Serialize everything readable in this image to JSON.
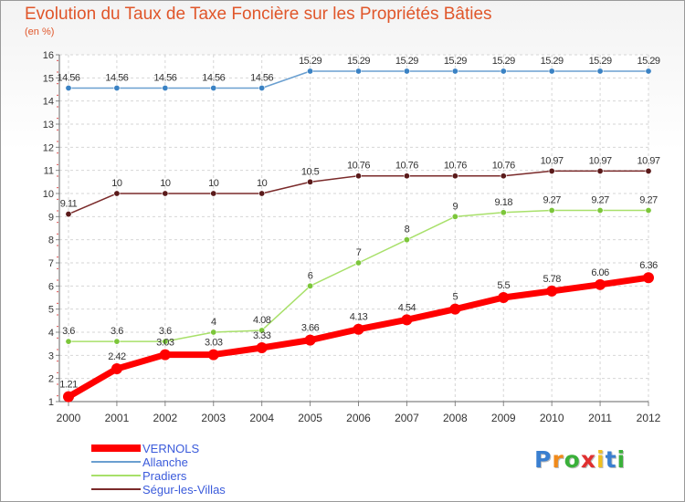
{
  "chart_data": {
    "type": "line",
    "title": "Evolution du Taux de Taxe Foncière sur les Propriétés Bâties",
    "subtitle": "(en %)",
    "x": [
      "2000",
      "2001",
      "2002",
      "2003",
      "2004",
      "2005",
      "2006",
      "2007",
      "2008",
      "2009",
      "2010",
      "2011",
      "2012"
    ],
    "ylim": [
      1,
      16
    ],
    "yticks": [
      1,
      2,
      3,
      4,
      5,
      6,
      7,
      8,
      9,
      10,
      11,
      12,
      13,
      14,
      15,
      16
    ],
    "grid": true,
    "legend_position": "bottom-left",
    "series": [
      {
        "name": "Allanche",
        "color": "#6a9fd0",
        "marker": "#3a82c4",
        "width": 1.5,
        "values": [
          14.56,
          14.56,
          14.56,
          14.56,
          14.56,
          15.29,
          15.29,
          15.29,
          15.29,
          15.29,
          15.29,
          15.29,
          15.29
        ],
        "labels": [
          "14.56",
          "14.56",
          "14.56",
          "14.56",
          "14.56",
          "15.29",
          "15.29",
          "15.29",
          "15.29",
          "15.29",
          "15.29",
          "15.29",
          "15.29"
        ]
      },
      {
        "name": "Ségur-les-Villas",
        "color": "#7a2a2a",
        "marker": "#5a1a1a",
        "width": 1.5,
        "values": [
          9.11,
          10,
          10,
          10,
          10,
          10.5,
          10.76,
          10.76,
          10.76,
          10.76,
          10.97,
          10.97,
          10.97
        ],
        "labels": [
          "9.11",
          "10",
          "10",
          "10",
          "10",
          "10.5",
          "10.76",
          "10.76",
          "10.76",
          "10.76",
          "10.97",
          "10.97",
          "10.97"
        ]
      },
      {
        "name": "Pradiers",
        "color": "#a8e06a",
        "marker": "#7cc63a",
        "width": 1.5,
        "values": [
          3.6,
          3.6,
          3.6,
          4,
          4.08,
          6,
          7,
          8,
          9,
          9.18,
          9.27,
          9.27,
          9.27
        ],
        "labels": [
          "3.6",
          "3.6",
          "3.6",
          "4",
          "4.08",
          "6",
          "7",
          "8",
          "9",
          "9.18",
          "9.27",
          "9.27",
          "9.27"
        ]
      },
      {
        "name": "VERNOLS",
        "color": "#ff0000",
        "marker": "#ff0000",
        "width": 7,
        "values": [
          1.21,
          2.42,
          3.03,
          3.03,
          3.33,
          3.66,
          4.13,
          4.54,
          5,
          5.5,
          5.78,
          6.06,
          6.36
        ],
        "labels": [
          "1.21",
          "2.42",
          "3.03",
          "3.03",
          "3.33",
          "3.66",
          "4.13",
          "4.54",
          "5",
          "5.5",
          "5.78",
          "6.06",
          "6.36"
        ]
      }
    ]
  },
  "legend": [
    {
      "label": "VERNOLS",
      "color": "#ff0000",
      "thickness": 8
    },
    {
      "label": "Allanche",
      "color": "#6a9fd0",
      "thickness": 2
    },
    {
      "label": "Pradiers",
      "color": "#a8e06a",
      "thickness": 2
    },
    {
      "label": "Ségur-les-Villas",
      "color": "#7a2a2a",
      "thickness": 2
    }
  ],
  "logo": {
    "letters": [
      "P",
      "r",
      "o",
      "x",
      "i",
      "t",
      "i"
    ],
    "colors": [
      "#3a7fd0",
      "#f08a1a",
      "#3ab03a",
      "#e03030",
      "#f0c020",
      "#3a7fd0",
      "#3ab03a"
    ]
  }
}
